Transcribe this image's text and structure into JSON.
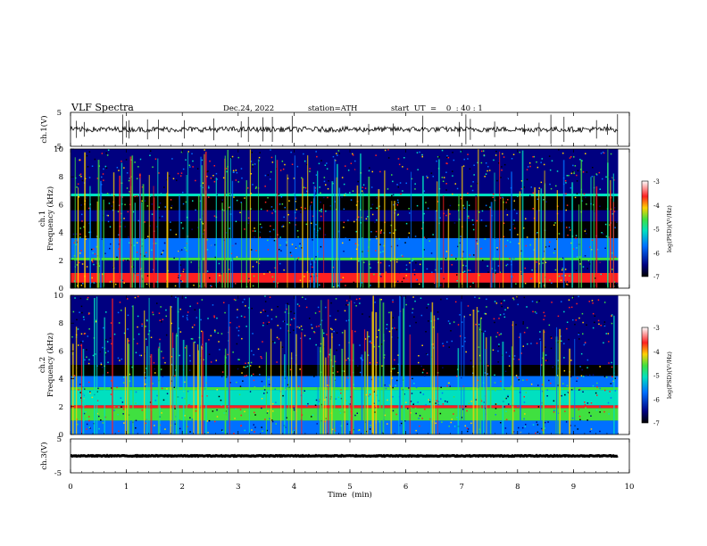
{
  "header": {
    "title": "VLF  Spectra",
    "date": "Dec.24, 2022",
    "station": "station=ATH",
    "start_ut": "start  UT  =    0  : 40 : 1"
  },
  "chart_data": [
    {
      "type": "line",
      "panel": "ch1-waveform",
      "ylabel": "ch.1(V)",
      "ylim": [
        -5,
        5
      ],
      "yticks": [
        "5",
        "-5"
      ],
      "x_range_min": [
        0,
        9.8
      ],
      "approx_level_v": 0.0
    },
    {
      "type": "heatmap",
      "panel": "ch1-spectrogram",
      "ylabel": "ch.1\nFrequency (kHz)",
      "ylim": [
        0,
        10
      ],
      "yticks": [
        "0",
        "2",
        "4",
        "6",
        "8",
        "10"
      ],
      "colorbar": {
        "label": "log(PSD)(V²/Hz)",
        "range": [
          -7,
          -3
        ],
        "ticks": [
          "-3",
          "-4",
          "-5",
          "-6",
          "-7"
        ]
      },
      "bands_khz": [
        {
          "from": 0.0,
          "to": 0.4,
          "level": -7
        },
        {
          "from": 0.4,
          "to": 1.1,
          "level": -3.6
        },
        {
          "from": 1.1,
          "to": 2.0,
          "level": -6.0
        },
        {
          "from": 2.0,
          "to": 2.2,
          "level": -4.6
        },
        {
          "from": 2.2,
          "to": 3.6,
          "level": -5.2
        },
        {
          "from": 3.6,
          "to": 4.8,
          "level": -6.8
        },
        {
          "from": 4.8,
          "to": 5.6,
          "level": -6.0
        },
        {
          "from": 5.6,
          "to": 6.6,
          "level": -6.6
        },
        {
          "from": 6.6,
          "to": 6.8,
          "level": -4.8
        },
        {
          "from": 6.8,
          "to": 10.0,
          "level": -5.8
        }
      ]
    },
    {
      "type": "heatmap",
      "panel": "ch2-spectrogram",
      "ylabel": "ch.2\nFrequency (kHz)",
      "ylim": [
        0,
        10
      ],
      "yticks": [
        "0",
        "2",
        "4",
        "6",
        "8",
        "10"
      ],
      "colorbar": {
        "label": "log(PSD)(V²/Hz)",
        "range": [
          -7,
          -3
        ],
        "ticks": [
          "-3",
          "-4",
          "-5",
          "-6",
          "-7"
        ]
      },
      "bands_khz": [
        {
          "from": 0.0,
          "to": 1.0,
          "level": -5.4
        },
        {
          "from": 1.0,
          "to": 1.9,
          "level": -4.6
        },
        {
          "from": 1.9,
          "to": 2.1,
          "level": -3.4
        },
        {
          "from": 2.1,
          "to": 3.2,
          "level": -5.0
        },
        {
          "from": 3.2,
          "to": 3.4,
          "level": -4.2
        },
        {
          "from": 3.4,
          "to": 4.2,
          "level": -5.2
        },
        {
          "from": 4.2,
          "to": 5.0,
          "level": -6.8
        },
        {
          "from": 5.0,
          "to": 6.0,
          "level": -5.8
        },
        {
          "from": 6.0,
          "to": 10.0,
          "level": -6.2
        }
      ]
    },
    {
      "type": "line",
      "panel": "ch3-waveform",
      "ylabel": "ch.3(V)",
      "ylim": [
        -5,
        5
      ],
      "yticks": [
        "5",
        "-5"
      ],
      "x_range_min": [
        0,
        9.8
      ],
      "approx_level_v": 0.0
    }
  ],
  "xaxis": {
    "label": "Time  (min)",
    "ticks": [
      "0",
      "1",
      "2",
      "3",
      "4",
      "5",
      "6",
      "7",
      "8",
      "9",
      "10"
    ],
    "range": [
      0,
      10
    ]
  },
  "colors": {
    "colormap": [
      "#ffffff",
      "#ff2020",
      "#ffd000",
      "#40e040",
      "#00e0c0",
      "#0070ff",
      "#000080",
      "#000000"
    ]
  }
}
